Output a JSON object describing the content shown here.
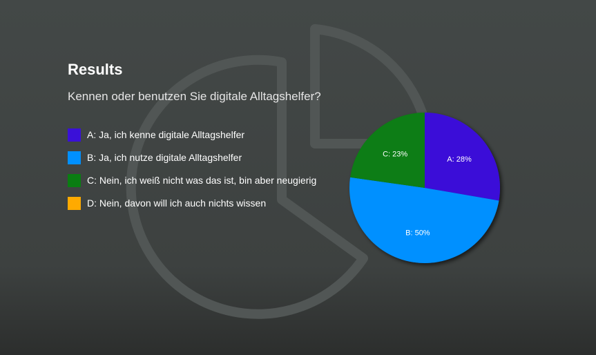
{
  "header": {
    "title": "Results",
    "question": "Kennen oder benutzen Sie digitale Alltagshelfer?"
  },
  "background_icon": "pie-chart-icon",
  "chart_data": {
    "type": "pie",
    "slices": [
      {
        "key": "A",
        "label": "A: Ja, ich kenne digitale Alltagshelfer",
        "value": 28,
        "data_label": "A: 28%",
        "color": "#3a10d8"
      },
      {
        "key": "B",
        "label": "B: Ja, ich nutze digitale Alltagshelfer",
        "value": 50,
        "data_label": "B: 50%",
        "color": "#0090ff"
      },
      {
        "key": "C",
        "label": "C: Nein, ich weiß nicht was das ist, bin aber neugierig",
        "value": 23,
        "data_label": "C: 23%",
        "color": "#0a7d12"
      },
      {
        "key": "D",
        "label": "D: Nein, davon will ich auch nichts wissen",
        "value": 0,
        "data_label": "",
        "color": "#ffaa00"
      }
    ],
    "legend_position": "left"
  }
}
